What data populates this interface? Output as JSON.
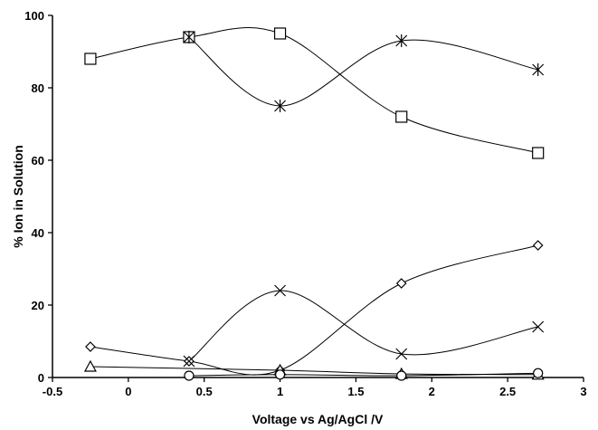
{
  "chart_data": {
    "type": "scatter",
    "xlabel": "Voltage vs Ag/AgCl /V",
    "ylabel": "% Ion in Solution",
    "xlim": [
      -0.5,
      3
    ],
    "ylim": [
      0,
      100
    ],
    "x_ticks": [
      "-0.5",
      "0",
      "0.5",
      "1",
      "1.5",
      "2",
      "2.5",
      "3"
    ],
    "y_ticks": [
      "0",
      "20",
      "40",
      "60",
      "80",
      "100"
    ],
    "x_tick_values": [
      -0.5,
      0,
      0.5,
      1,
      1.5,
      2,
      2.5,
      3
    ],
    "y_tick_values": [
      0,
      20,
      40,
      60,
      80,
      100
    ],
    "grid": false,
    "legend": "none",
    "line_style": "smooth",
    "series": [
      {
        "marker": "square",
        "x": [
          -0.25,
          0.4,
          1.0,
          1.8,
          2.7
        ],
        "y": [
          88,
          94,
          95,
          72,
          62
        ]
      },
      {
        "marker": "asterisk",
        "x": [
          0.4,
          1.0,
          1.8,
          2.7
        ],
        "y": [
          94,
          75,
          93,
          85
        ]
      },
      {
        "marker": "diamond",
        "x": [
          -0.25,
          0.4,
          1.0,
          1.8,
          2.7
        ],
        "y": [
          8.5,
          4.5,
          2,
          26,
          36.5
        ]
      },
      {
        "marker": "cross",
        "x": [
          0.4,
          1.0,
          1.8,
          2.7
        ],
        "y": [
          4.5,
          24,
          6.5,
          14
        ]
      },
      {
        "marker": "triangle",
        "x": [
          -0.25,
          1.0,
          1.8,
          2.7
        ],
        "y": [
          3,
          2,
          1,
          0.8
        ]
      },
      {
        "marker": "circle",
        "x": [
          0.4,
          1.0,
          1.8,
          2.7
        ],
        "y": [
          0.5,
          0.8,
          0.5,
          1.2
        ]
      }
    ]
  }
}
